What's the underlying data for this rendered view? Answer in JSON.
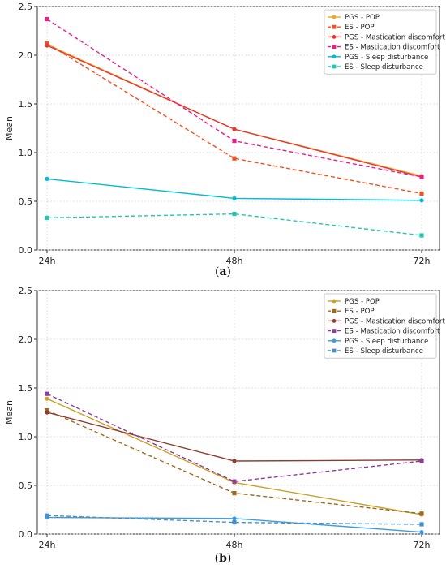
{
  "chart_data": [
    {
      "type": "line",
      "categories": [
        "24h",
        "48h",
        "72h"
      ],
      "ylabel": "Mean",
      "ylim": [
        0,
        2.5
      ],
      "yticks": [
        "0.0",
        "0.5",
        "1.0",
        "1.5",
        "2.0",
        "2.5"
      ],
      "grid": true,
      "legend": "top-right",
      "caption_prefix": "(",
      "caption_letter": "a",
      "caption_suffix": ")",
      "series": [
        {
          "name": "PGS - POP",
          "values": [
            2.11,
            1.24,
            0.76
          ],
          "color": "#f5a623",
          "dash": false,
          "marker": "circle"
        },
        {
          "name": "ES - POP",
          "values": [
            2.12,
            0.94,
            0.58
          ],
          "color": "#f4511e",
          "dash": true,
          "marker": "square"
        },
        {
          "name": "PGS - Mastication discomfort",
          "values": [
            2.1,
            1.24,
            0.75
          ],
          "color": "#e53935",
          "dash": false,
          "marker": "circle"
        },
        {
          "name": "ES - Mastication discomfort",
          "values": [
            2.37,
            1.12,
            0.75
          ],
          "color": "#e91e8c",
          "dash": true,
          "marker": "square"
        },
        {
          "name": "PGS - Sleep disturbance",
          "values": [
            0.73,
            0.53,
            0.51
          ],
          "color": "#00bcd4",
          "dash": false,
          "marker": "circle"
        },
        {
          "name": "ES - Sleep disturbance",
          "values": [
            0.33,
            0.37,
            0.15
          ],
          "color": "#26c6b3",
          "dash": true,
          "marker": "square"
        }
      ]
    },
    {
      "type": "line",
      "categories": [
        "24h",
        "48h",
        "72h"
      ],
      "ylabel": "Mean",
      "ylim": [
        0,
        2.5
      ],
      "yticks": [
        "0.0",
        "0.5",
        "1.0",
        "1.5",
        "2.0",
        "2.5"
      ],
      "grid": true,
      "legend": "top-right",
      "caption_prefix": "(",
      "caption_letter": "b",
      "caption_suffix": ")",
      "series": [
        {
          "name": "PGS - POP",
          "values": [
            1.39,
            0.53,
            0.2
          ],
          "color": "#c9a227",
          "dash": false,
          "marker": "circle"
        },
        {
          "name": "ES - POP",
          "values": [
            1.27,
            0.42,
            0.21
          ],
          "color": "#9c6b1e",
          "dash": true,
          "marker": "square"
        },
        {
          "name": "PGS - Mastication discomfort",
          "values": [
            1.25,
            0.75,
            0.76
          ],
          "color": "#8e3b2e",
          "dash": false,
          "marker": "circle"
        },
        {
          "name": "ES - Mastication discomfort",
          "values": [
            1.44,
            0.54,
            0.75
          ],
          "color": "#8e3b9e",
          "dash": true,
          "marker": "square"
        },
        {
          "name": "PGS - Sleep disturbance",
          "values": [
            0.17,
            0.16,
            0.02
          ],
          "color": "#3f9be0",
          "dash": false,
          "marker": "circle"
        },
        {
          "name": "ES - Sleep disturbance",
          "values": [
            0.19,
            0.12,
            0.1
          ],
          "color": "#4a90c8",
          "dash": true,
          "marker": "square"
        }
      ]
    }
  ]
}
